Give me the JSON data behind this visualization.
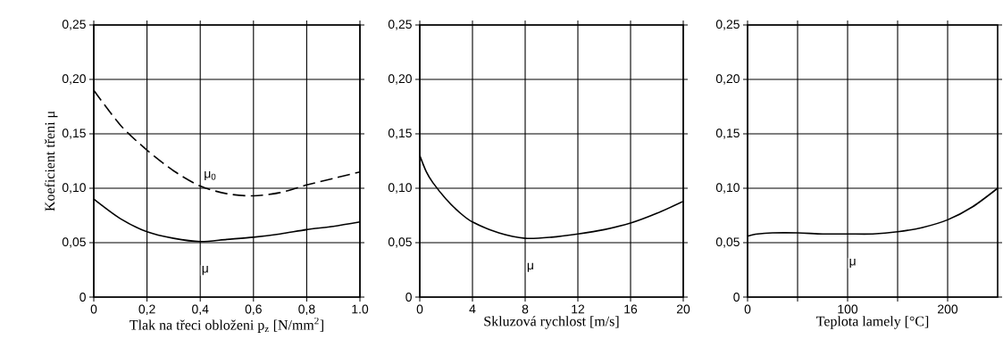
{
  "chart_data": [
    {
      "type": "line",
      "xlabel": "Tlak na třeci obloženi p$_{z}$ [N/mm$^{2}$]",
      "ylabel": "Koeficient třeni μ",
      "xlim": [
        0,
        1.0
      ],
      "ylim": [
        0,
        0.25
      ],
      "xticks": [
        0,
        {
          "value": 0.2,
          "label": "0,2"
        },
        {
          "value": 0.4,
          "label": "0,4"
        },
        {
          "value": 0.6,
          "label": "0,6"
        },
        {
          "value": 0.8,
          "label": "0,8"
        },
        {
          "value": 1.0,
          "label": "1.0"
        }
      ],
      "yticks": [
        0,
        {
          "value": 0.05,
          "label": "0,05"
        },
        {
          "value": 0.1,
          "label": "0,10"
        },
        {
          "value": 0.15,
          "label": "0,15"
        },
        {
          "value": 0.2,
          "label": "0,20"
        },
        {
          "value": 0.25,
          "label": "0,25"
        }
      ],
      "grid": true,
      "series": [
        {
          "name": "μ$_{0}$",
          "color": "#000000",
          "line_style": "dashed",
          "x": [
            0,
            0.1,
            0.2,
            0.3,
            0.4,
            0.5,
            0.6,
            0.7,
            0.8,
            0.9,
            1.0
          ],
          "values": [
            0.19,
            0.158,
            0.135,
            0.116,
            0.102,
            0.095,
            0.093,
            0.096,
            0.103,
            0.109,
            0.115
          ]
        },
        {
          "name": "μ",
          "color": "#000000",
          "line_style": "solid",
          "x": [
            0,
            0.1,
            0.2,
            0.3,
            0.4,
            0.5,
            0.6,
            0.7,
            0.8,
            0.9,
            1.0
          ],
          "values": [
            0.09,
            0.072,
            0.06,
            0.054,
            0.051,
            0.053,
            0.055,
            0.058,
            0.062,
            0.065,
            0.069
          ]
        }
      ]
    },
    {
      "type": "line",
      "xlabel": "Skluzová rychlost [m/s]",
      "xlim": [
        0,
        20
      ],
      "ylim": [
        0,
        0.25
      ],
      "xticks": [
        0,
        4,
        8,
        12,
        16,
        20
      ],
      "yticks": [
        0,
        {
          "value": 0.05,
          "label": "0,05"
        },
        {
          "value": 0.1,
          "label": "0,10"
        },
        {
          "value": 0.15,
          "label": "0,15"
        },
        {
          "value": 0.2,
          "label": "0,20"
        },
        {
          "value": 0.25,
          "label": "0,25"
        }
      ],
      "grid": true,
      "series": [
        {
          "name": "μ",
          "color": "#000000",
          "line_style": "solid",
          "x": [
            0,
            0.5,
            1,
            2,
            3,
            4,
            6,
            8,
            10,
            12,
            14,
            16,
            18,
            20
          ],
          "values": [
            0.13,
            0.115,
            0.105,
            0.09,
            0.078,
            0.069,
            0.059,
            0.054,
            0.055,
            0.058,
            0.062,
            0.068,
            0.077,
            0.088
          ]
        }
      ]
    },
    {
      "type": "line",
      "xlabel": "Teplota lamely [°C]",
      "xlim": [
        0,
        250
      ],
      "ylim": [
        0,
        0.25
      ],
      "xticks": [
        0,
        {
          "value": 50,
          "label": null
        },
        100,
        {
          "value": 150,
          "label": null
        },
        200
      ],
      "yticks": [
        0,
        {
          "value": 0.05,
          "label": "0,05"
        },
        {
          "value": 0.1,
          "label": "0,10"
        },
        {
          "value": 0.15,
          "label": "0,15"
        },
        {
          "value": 0.2,
          "label": "0,20"
        },
        {
          "value": 0.25,
          "label": "0,25"
        }
      ],
      "grid": true,
      "series": [
        {
          "name": "μ",
          "color": "#000000",
          "line_style": "solid",
          "x": [
            0,
            10,
            25,
            50,
            75,
            100,
            125,
            150,
            175,
            200,
            225,
            250
          ],
          "values": [
            0.056,
            0.058,
            0.059,
            0.059,
            0.058,
            0.058,
            0.058,
            0.06,
            0.064,
            0.071,
            0.083,
            0.1
          ]
        }
      ]
    }
  ]
}
